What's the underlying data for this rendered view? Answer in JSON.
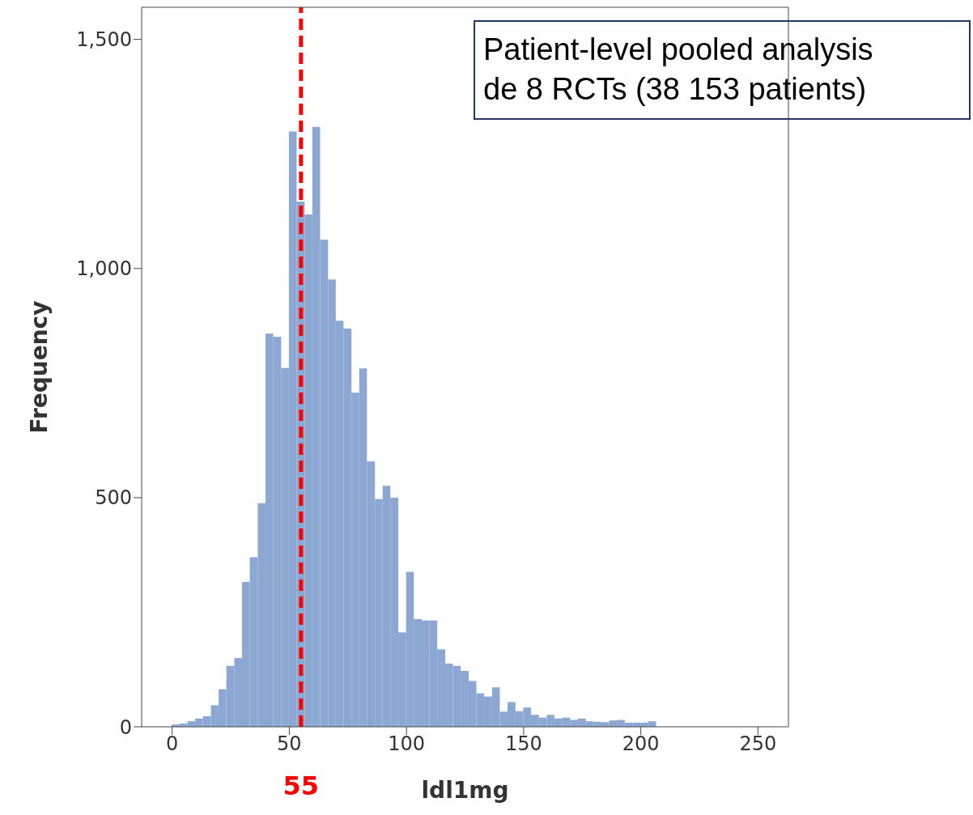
{
  "chart_data": {
    "type": "histogram",
    "xlabel": "ldl1mg",
    "ylabel": "Frequency",
    "color": "#8ca7d1",
    "bins": [
      0,
      3.3,
      6.7,
      10,
      13.3,
      16.7,
      20,
      23.3,
      26.7,
      30,
      33.3,
      36.7,
      40,
      43.3,
      46.7,
      50,
      53.3,
      56.7,
      60,
      63.3,
      66.7,
      70,
      73.3,
      76.7,
      80,
      83.3,
      86.7,
      90,
      93.3,
      96.7,
      100,
      103.3,
      106.7,
      110,
      113.3,
      116.7,
      120,
      123.3,
      126.7,
      130,
      133.3,
      136.7,
      140,
      143.3,
      146.7,
      150,
      153.3,
      156.7,
      160,
      163.3,
      166.7,
      170,
      173.3,
      176.7,
      180,
      183.3,
      186.7,
      190,
      193.3,
      196.7,
      200,
      203.3,
      206.7
    ],
    "values": [
      5,
      7,
      12,
      18,
      23,
      47,
      82,
      133,
      150,
      316,
      370,
      488,
      858,
      851,
      783,
      1299,
      1146,
      1118,
      1309,
      1063,
      976,
      886,
      869,
      729,
      782,
      579,
      497,
      526,
      500,
      206,
      338,
      235,
      232,
      232,
      169,
      138,
      133,
      122,
      100,
      73,
      66,
      86,
      33,
      54,
      34,
      42,
      26,
      20,
      26,
      18,
      20,
      15,
      18,
      12,
      11,
      10,
      14,
      15,
      9,
      9,
      9,
      12
    ],
    "xlim": [
      -13,
      263
    ],
    "xticks": [
      0,
      50,
      100,
      150,
      200,
      250
    ],
    "ylim": [
      0,
      1570
    ],
    "yticks": [
      0,
      500,
      {
        "value": 1000,
        "label": "1,000"
      },
      {
        "value": 1500,
        "label": "1,500"
      }
    ],
    "ref_lines": [
      {
        "axis": "x",
        "value": 55,
        "label": "55",
        "color": "#ff0000",
        "line_style": "dashed"
      }
    ],
    "annotations": [
      "Patient-level pooled analysis\nde 8 RCTs (38 153 patients)"
    ]
  }
}
